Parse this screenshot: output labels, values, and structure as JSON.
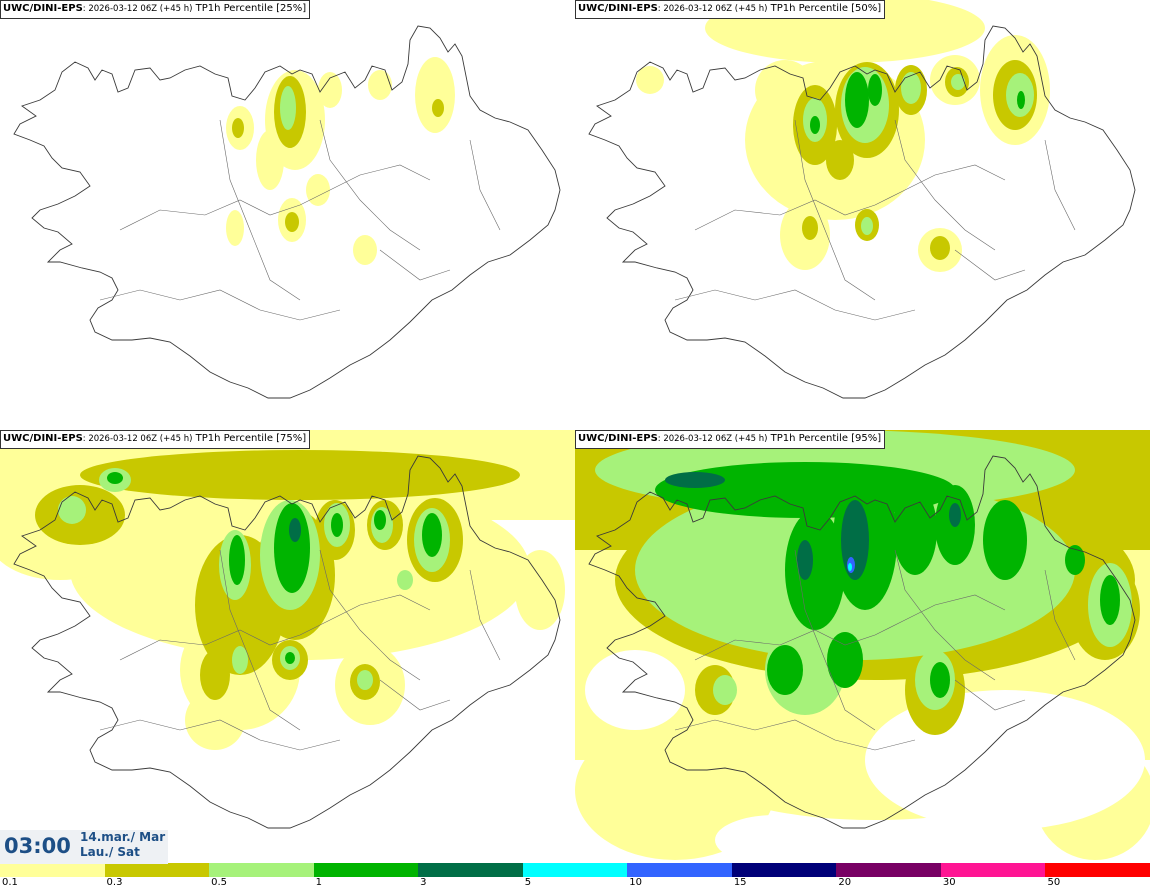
{
  "panels": [
    {
      "model": "UWC/DINI-EPS",
      "run": ": 2026-03-12 06Z (+45 h)",
      "field": " TP1h Percentile [25%]"
    },
    {
      "model": "UWC/DINI-EPS",
      "run": ": 2026-03-12 06Z (+45 h)",
      "field": " TP1h Percentile [50%]"
    },
    {
      "model": "UWC/DINI-EPS",
      "run": ": 2026-03-12 06Z (+45 h)",
      "field": " TP1h Percentile [75%]"
    },
    {
      "model": "UWC/DINI-EPS",
      "run": ": 2026-03-12 06Z (+45 h)",
      "field": " TP1h Percentile [95%]"
    }
  ],
  "valid_time": {
    "time": "03:00",
    "date_line1": "14.mar./ Mar",
    "date_line2": "Lau./ Sat"
  },
  "legend": {
    "ticks": [
      "0.1",
      "0.3",
      "0.5",
      "1",
      "3",
      "5",
      "10",
      "15",
      "20",
      "30",
      "50"
    ],
    "colors": [
      "#ffff99",
      "#c8c800",
      "#a6f27a",
      "#00b400",
      "#006e46",
      "#00ffff",
      "#3264ff",
      "#000078",
      "#780064",
      "#ff1493",
      "#ff0000"
    ]
  }
}
